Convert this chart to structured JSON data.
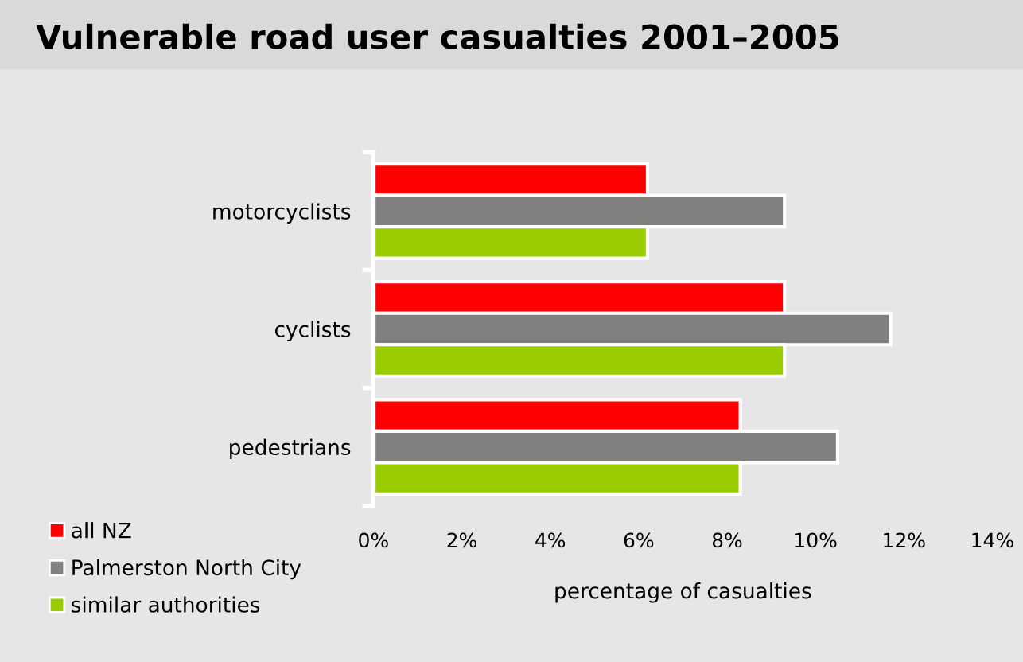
{
  "chart_data": {
    "type": "bar",
    "orientation": "horizontal",
    "title": "Vulnerable road user casualties 2001–2005",
    "categories": [
      "motorcyclists",
      "cyclists",
      "pedestrians"
    ],
    "series": [
      {
        "name": "all NZ",
        "color": "#ff0000",
        "values": [
          6.2,
          9.3,
          8.3
        ]
      },
      {
        "name": "Palmerston North City",
        "color": "#808080",
        "values": [
          9.3,
          11.7,
          10.5
        ]
      },
      {
        "name": "similar authorities",
        "color": "#99cc00",
        "values": [
          6.2,
          9.3,
          8.3
        ]
      }
    ],
    "xlim": [
      0,
      14
    ],
    "xticks": [
      {
        "value": 0,
        "label": "0%"
      },
      {
        "value": 2,
        "label": "2%"
      },
      {
        "value": 4,
        "label": "4%"
      },
      {
        "value": 6,
        "label": "6%"
      },
      {
        "value": 8,
        "label": "8%"
      },
      {
        "value": 10,
        "label": "10%"
      },
      {
        "value": 12,
        "label": "12%"
      },
      {
        "value": 14,
        "label": "14%"
      }
    ],
    "xlabel": "percentage of casualties",
    "grid": false,
    "legend": "bottom left"
  }
}
